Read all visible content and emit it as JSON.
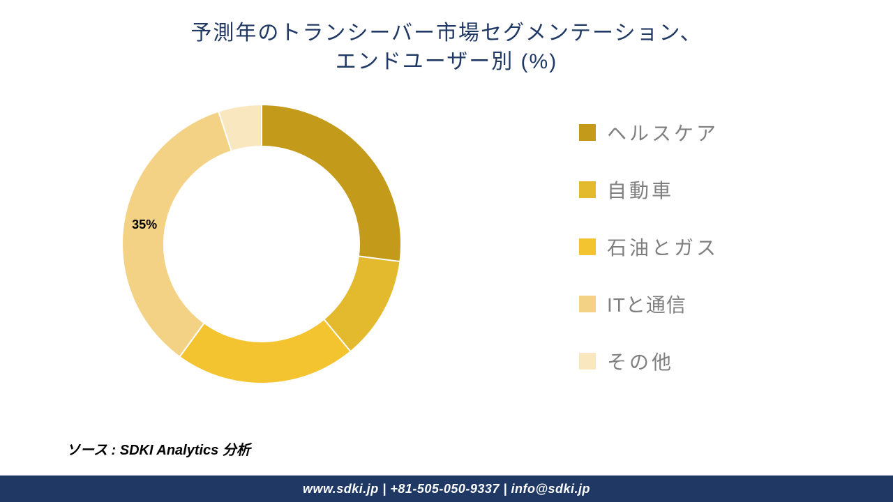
{
  "title": {
    "line1": "予測年のトランシーバー市場セグメンテーション、",
    "line2": "エンドユーザー別 (%)",
    "color": "#1f3864",
    "fontsize": 30
  },
  "chart": {
    "type": "donut",
    "background_color": "#ffffff",
    "outer_radius": 200,
    "inner_radius": 140,
    "start_angle_deg": 0,
    "direction": "clockwise",
    "slices": [
      {
        "label": "ヘルスケア",
        "value": 27,
        "color": "#c49a1a",
        "show_percent": false
      },
      {
        "label": "自動車",
        "value": 12,
        "color": "#e3b92d",
        "show_percent": false
      },
      {
        "label": "石油とガス",
        "value": 21,
        "color": "#f4c430",
        "show_percent": false
      },
      {
        "label": "ITと通信",
        "value": 35,
        "color": "#f4d285",
        "show_percent": true,
        "percent_text": "35%"
      },
      {
        "label": "その他",
        "value": 5,
        "color": "#f9e7c0",
        "show_percent": false
      }
    ],
    "gap_color": "#ffffff",
    "gap_width": 2,
    "percent_label": {
      "fontsize": 18,
      "color": "#000000",
      "fontweight": 700
    }
  },
  "legend": {
    "fontsize": 28,
    "text_color": "#7f7f7f",
    "swatch_size": 24,
    "gap": 42,
    "items": [
      {
        "text": "ヘルスケア",
        "color": "#c49a1a",
        "ascii": false
      },
      {
        "text": "自動車",
        "color": "#e3b92d",
        "ascii": false
      },
      {
        "text": "石油とガス",
        "color": "#f4c430",
        "ascii": false
      },
      {
        "text": "ITと通信",
        "color": "#f4d285",
        "ascii": true
      },
      {
        "text": "その他",
        "color": "#f9e7c0",
        "ascii": false
      }
    ]
  },
  "source": {
    "text": "ソース : SDKI Analytics 分析",
    "fontsize": 20,
    "color": "#000000"
  },
  "footer": {
    "text": "www.sdki.jp | +81-505-050-9337 | info@sdki.jp",
    "background": "#1f3864",
    "text_color": "#ffffff",
    "fontsize": 18
  }
}
